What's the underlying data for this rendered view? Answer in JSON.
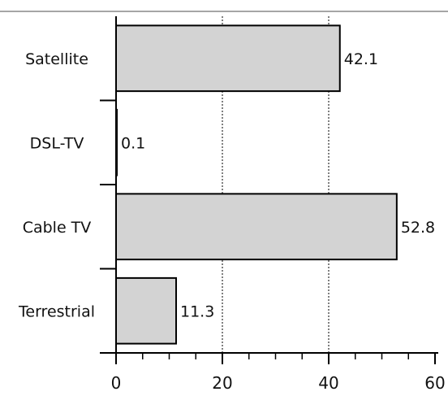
{
  "chart_data": {
    "type": "bar",
    "orientation": "horizontal",
    "categories": [
      "Satellite",
      "DSL-TV",
      "Cable TV",
      "Terrestrial"
    ],
    "values": [
      42.1,
      0.1,
      52.8,
      11.3
    ],
    "value_labels": [
      "42.1",
      "0.1",
      "52.8",
      "11.3"
    ],
    "title": "",
    "xlabel": "",
    "ylabel": "",
    "xlim": [
      0,
      60
    ],
    "x_ticks": [
      0,
      20,
      40,
      60
    ],
    "x_tick_labels": [
      "0",
      "20",
      "40",
      "60"
    ],
    "grid": "vertical dotted at 20 and 40",
    "legend": "none",
    "colors": {
      "bar_fill": "#d3d3d3",
      "bar_stroke": "#000000",
      "rule": "#888888"
    }
  }
}
